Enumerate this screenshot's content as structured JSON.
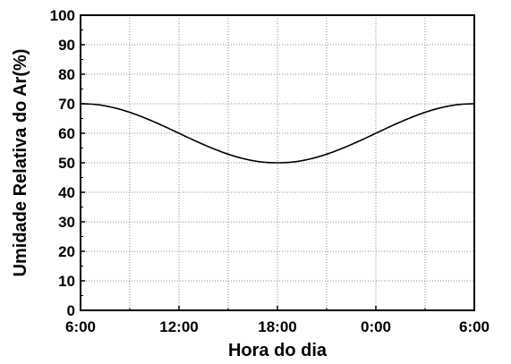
{
  "chart_data": {
    "type": "line",
    "title": "",
    "xlabel": "Hora do dia",
    "ylabel": "Umidade Relativa do Ar(%)",
    "x_tick_labels": [
      "6:00",
      "12:00",
      "18:00",
      "0:00",
      "6:00"
    ],
    "y_tick_labels": [
      "0",
      "10",
      "20",
      "30",
      "40",
      "50",
      "60",
      "70",
      "80",
      "90",
      "100"
    ],
    "xlim_hours": [
      0,
      24
    ],
    "x_unit": "hours after 6:00",
    "ylim": [
      0,
      100
    ],
    "grid": true,
    "legend": "none",
    "series": [
      {
        "x": [
          0,
          1,
          2,
          3,
          4,
          5,
          6,
          7,
          8,
          9,
          10,
          11,
          12,
          13,
          14,
          15,
          16,
          17,
          18,
          19,
          20,
          21,
          22,
          23,
          24
        ],
        "y": [
          70,
          69.7,
          68.7,
          67.1,
          65,
          62.6,
          60,
          57.4,
          55,
          52.9,
          51.3,
          50.3,
          50,
          50.3,
          51.3,
          52.9,
          55,
          57.4,
          60,
          62.6,
          65,
          67.1,
          68.7,
          69.7,
          70
        ],
        "color": "#000000"
      }
    ]
  }
}
